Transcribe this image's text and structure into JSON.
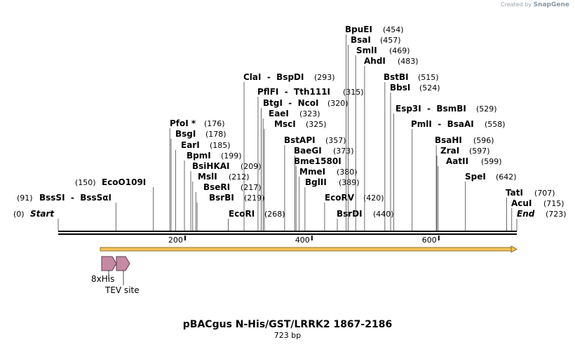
{
  "credit": {
    "prefix": "Created by",
    "brand": "SnapGene"
  },
  "map": {
    "title": "pBACgus N-His/GST/LRRK2 1867-2186",
    "length_label": "723 bp",
    "length_bp": 723,
    "ticks": [
      {
        "value": 200,
        "label": "200"
      },
      {
        "value": 400,
        "label": "400"
      },
      {
        "value": 600,
        "label": "600"
      }
    ],
    "colors": {
      "orf_fill": "#f3c35b",
      "orf_stroke": "#7a5a10",
      "feature_fill": "#c58aa3",
      "feature_stroke": "#5a3a48"
    }
  },
  "sites": [
    {
      "name": "Start",
      "pos": "(0)",
      "bp": 0,
      "italic": true
    },
    {
      "name": "BssSI  -  BssSαI",
      "pos": "(91)",
      "bp": 91
    },
    {
      "name": "EcoO109I",
      "pos": "(150)",
      "bp": 150
    },
    {
      "name": "PfoI *",
      "pos": "(176)",
      "bp": 176
    },
    {
      "name": "BsgI",
      "pos": "(178)",
      "bp": 178
    },
    {
      "name": "EarI",
      "pos": "(185)",
      "bp": 185
    },
    {
      "name": "BpmI",
      "pos": "(199)",
      "bp": 199
    },
    {
      "name": "BsiHKAI",
      "pos": "(209)",
      "bp": 209
    },
    {
      "name": "MslI",
      "pos": "(212)",
      "bp": 212
    },
    {
      "name": "BseRI",
      "pos": "(217)",
      "bp": 217
    },
    {
      "name": "BsrBI",
      "pos": "(219)",
      "bp": 219
    },
    {
      "name": "EcoRI",
      "pos": "(268)",
      "bp": 268
    },
    {
      "name": "ClaI  -  BspDI",
      "pos": "(293)",
      "bp": 293
    },
    {
      "name": "PflFI  -  Tth111I",
      "pos": "(315)",
      "bp": 315
    },
    {
      "name": "BtgI  -  NcoI",
      "pos": "(320)",
      "bp": 320
    },
    {
      "name": "EaeI",
      "pos": "(323)",
      "bp": 323
    },
    {
      "name": "MscI",
      "pos": "(325)",
      "bp": 325
    },
    {
      "name": "BstAPI",
      "pos": "(357)",
      "bp": 357
    },
    {
      "name": "BaeGI",
      "pos": "(373)",
      "bp": 373
    },
    {
      "name": "Bme1580I",
      "pos": "",
      "bp": 375
    },
    {
      "name": "MmeI",
      "pos": "(380)",
      "bp": 380
    },
    {
      "name": "BglII",
      "pos": "(389)",
      "bp": 389
    },
    {
      "name": "EcoRV",
      "pos": "(420)",
      "bp": 420
    },
    {
      "name": "BsrDI",
      "pos": "(440)",
      "bp": 440
    },
    {
      "name": "BpuEI",
      "pos": "(454)",
      "bp": 454
    },
    {
      "name": "BsaI",
      "pos": "(457)",
      "bp": 457
    },
    {
      "name": "SmlI",
      "pos": "(469)",
      "bp": 469
    },
    {
      "name": "AhdI",
      "pos": "(483)",
      "bp": 483
    },
    {
      "name": "BstBI",
      "pos": "(515)",
      "bp": 515
    },
    {
      "name": "BbsI",
      "pos": "(524)",
      "bp": 524
    },
    {
      "name": "Esp3I  -  BsmBI",
      "pos": "(529)",
      "bp": 529
    },
    {
      "name": "PmlI  -  BsaAI",
      "pos": "(558)",
      "bp": 558
    },
    {
      "name": "BsaHI",
      "pos": "(596)",
      "bp": 596
    },
    {
      "name": "ZraI",
      "pos": "(597)",
      "bp": 597
    },
    {
      "name": "AatII",
      "pos": "(599)",
      "bp": 599
    },
    {
      "name": "SpeI",
      "pos": "(642)",
      "bp": 642
    },
    {
      "name": "TatI",
      "pos": "(707)",
      "bp": 707
    },
    {
      "name": "AcuI",
      "pos": "(715)",
      "bp": 715
    },
    {
      "name": "End",
      "pos": "(723)",
      "bp": 723,
      "italic": true
    }
  ],
  "features": [
    {
      "name": "8xHis"
    },
    {
      "name": "TEV site"
    }
  ]
}
